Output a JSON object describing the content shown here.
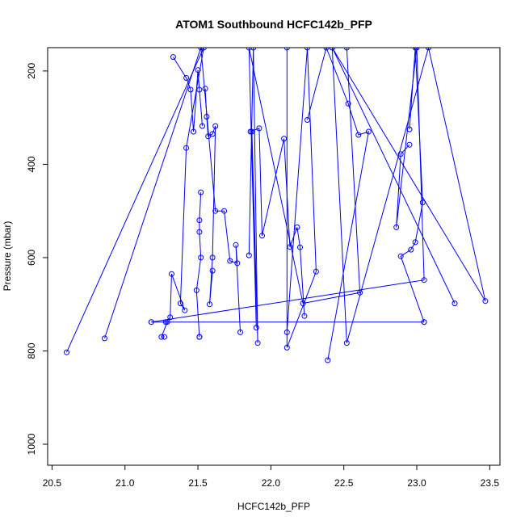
{
  "chart_data": {
    "type": "line",
    "title": "ATOM1 Southbound HCFC142b_PFP",
    "xlabel": "HCFC142b_PFP",
    "ylabel": "Pressure (mbar)",
    "xlim": [
      20.47,
      23.57
    ],
    "ylim": [
      1045,
      150
    ],
    "y_inverted": true,
    "x_ticks": [
      20.5,
      21.0,
      21.5,
      22.0,
      22.5,
      23.0,
      23.5
    ],
    "x_tick_labels": [
      "20.5",
      "21.0",
      "21.5",
      "22.0",
      "22.5",
      "23.0",
      "23.5"
    ],
    "y_ticks": [
      200,
      400,
      600,
      800,
      1000
    ],
    "y_tick_labels": [
      "200",
      "400",
      "600",
      "800",
      "1000"
    ],
    "grid": false,
    "series_color": "#0000ff",
    "marker": "open-circle",
    "series": [
      {
        "name": "",
        "points": [
          [
            21.33,
            170
          ],
          [
            21.42,
            215
          ],
          [
            21.45,
            240
          ],
          [
            21.47,
            330
          ],
          [
            21.5,
            198
          ],
          [
            21.51,
            240
          ],
          [
            21.53,
            318
          ]
        ]
      },
      {
        "name": "",
        "points": [
          [
            21.55,
            238
          ],
          [
            21.56,
            298
          ],
          [
            21.57,
            340
          ],
          [
            21.6,
            335
          ],
          [
            21.62,
            318
          ],
          [
            21.6,
            600
          ],
          [
            21.58,
            700
          ],
          [
            21.6,
            628
          ]
        ]
      },
      {
        "name": "",
        "points": [
          [
            21.52,
            460
          ],
          [
            21.51,
            520
          ],
          [
            21.51,
            545
          ],
          [
            21.52,
            600
          ],
          [
            21.49,
            670
          ],
          [
            21.51,
            770
          ],
          [
            21.51,
            770
          ]
        ]
      },
      {
        "name": "",
        "points": [
          [
            21.27,
            770
          ],
          [
            21.25,
            770
          ],
          [
            21.29,
            738
          ],
          [
            21.18,
            738
          ],
          [
            23.05,
            738
          ]
        ]
      },
      {
        "name": "",
        "points": [
          [
            20.6,
            803
          ],
          [
            21.54,
            150
          ],
          [
            21.42,
            365
          ],
          [
            21.38,
            698
          ],
          [
            21.41,
            713
          ],
          [
            21.32,
            635
          ],
          [
            21.31,
            728
          ],
          [
            21.28,
            738
          ]
        ]
      },
      {
        "name": "",
        "points": [
          [
            20.86,
            773
          ],
          [
            21.52,
            150
          ],
          [
            21.62,
            500
          ],
          [
            21.68,
            500
          ],
          [
            21.72,
            607
          ],
          [
            21.77,
            612
          ],
          [
            21.76,
            573
          ],
          [
            21.79,
            760
          ]
        ]
      },
      {
        "name": "",
        "points": [
          [
            21.86,
            330
          ],
          [
            21.92,
            323
          ],
          [
            21.94,
            553
          ],
          [
            22.09,
            345
          ],
          [
            22.13,
            577
          ],
          [
            22.18,
            535
          ],
          [
            22.2,
            578
          ],
          [
            22.23,
            725
          ]
        ]
      },
      {
        "name": "",
        "points": [
          [
            22.25,
            305
          ],
          [
            22.38,
            150
          ],
          [
            22.53,
            270
          ],
          [
            22.6,
            337
          ],
          [
            22.67,
            330
          ],
          [
            22.39,
            820
          ]
        ]
      },
      {
        "name": "",
        "points": [
          [
            22.11,
            760
          ],
          [
            22.25,
            150
          ],
          [
            22.31,
            630
          ],
          [
            22.11,
            793
          ],
          [
            22.11,
            150
          ]
        ]
      },
      {
        "name": "",
        "points": [
          [
            22.95,
            325
          ],
          [
            22.99,
            150
          ],
          [
            23.04,
            482
          ],
          [
            22.99,
            567
          ],
          [
            22.96,
            583
          ],
          [
            22.89,
            597
          ],
          [
            23.05,
            738
          ]
        ]
      },
      {
        "name": "",
        "points": [
          [
            22.95,
            358
          ],
          [
            22.89,
            378
          ],
          [
            22.86,
            535
          ],
          [
            23.0,
            150
          ],
          [
            23.05,
            648
          ],
          [
            21.18,
            738
          ]
        ]
      },
      {
        "name": "",
        "points": [
          [
            22.42,
            150
          ],
          [
            22.52,
            783
          ],
          [
            23.08,
            150
          ],
          [
            23.47,
            693
          ],
          [
            22.42,
            150
          ],
          [
            23.26,
            698
          ]
        ]
      },
      {
        "name": "",
        "points": [
          [
            21.85,
            595
          ],
          [
            21.88,
            150
          ],
          [
            21.91,
            783
          ],
          [
            21.87,
            330
          ],
          [
            21.9,
            750
          ],
          [
            21.85,
            150
          ],
          [
            22.22,
            698
          ],
          [
            22.61,
            675
          ],
          [
            22.52,
            150
          ]
        ]
      }
    ]
  }
}
